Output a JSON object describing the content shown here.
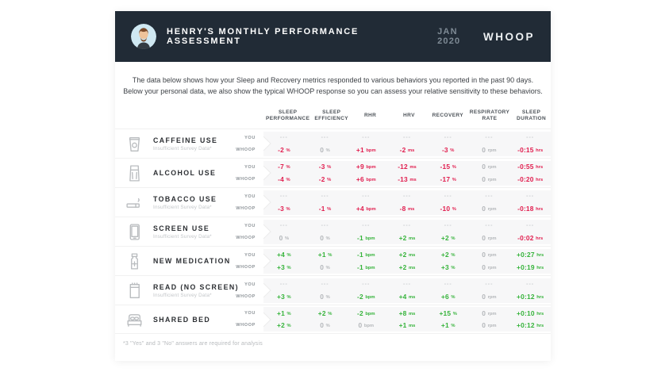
{
  "header": {
    "title": "HENRY'S MONTHLY PERFORMANCE ASSESSMENT",
    "period": "JAN 2020",
    "brand": "WHOOP",
    "avatar_icon": "user-avatar"
  },
  "intro": {
    "line1": "The data below shows how your Sleep and Recovery metrics responded to various behaviors you reported in the past 90 days.",
    "line2": "Below your personal data, we also show the typical WHOOP response so you can assess your relative sensitivity to these behaviors."
  },
  "colors": {
    "negative": "#E11D4E",
    "positive": "#35B33A",
    "neutral": "#B4B7BA",
    "header_bg": "#212B36",
    "panel_bg": "#F7F7F8"
  },
  "table": {
    "columns": [
      "SLEEP PERFORMANCE",
      "SLEEP EFFICIENCY",
      "RHR",
      "HRV",
      "RECOVERY",
      "RESPIRATORY RATE",
      "SLEEP DURATION"
    ],
    "row_source_labels": {
      "you": "YOU",
      "whoop": "WHOOP"
    },
    "rows": [
      {
        "label": "CAFFEINE USE",
        "subtitle": "Insufficient Survey Data*",
        "icon": "coffee-cup-icon",
        "you": [
          {
            "v": "---"
          },
          {
            "v": "---"
          },
          {
            "v": "---"
          },
          {
            "v": "---"
          },
          {
            "v": "---"
          },
          {
            "v": "---"
          },
          {
            "v": "---"
          }
        ],
        "whoop": [
          {
            "v": "-2",
            "u": "%",
            "c": "neg"
          },
          {
            "v": "0",
            "u": "%",
            "c": "neu"
          },
          {
            "v": "+1",
            "u": "bpm",
            "c": "neg"
          },
          {
            "v": "-2",
            "u": "ms",
            "c": "neg"
          },
          {
            "v": "-3",
            "u": "%",
            "c": "neg"
          },
          {
            "v": "0",
            "u": "rpm",
            "c": "neu"
          },
          {
            "v": "-0:15",
            "u": "hrs",
            "c": "neg"
          }
        ]
      },
      {
        "label": "ALCOHOL USE",
        "subtitle": "",
        "icon": "beer-glass-icon",
        "you": [
          {
            "v": "-7",
            "u": "%",
            "c": "neg"
          },
          {
            "v": "-3",
            "u": "%",
            "c": "neg"
          },
          {
            "v": "+9",
            "u": "bpm",
            "c": "neg"
          },
          {
            "v": "-12",
            "u": "ms",
            "c": "neg"
          },
          {
            "v": "-15",
            "u": "%",
            "c": "neg"
          },
          {
            "v": "0",
            "u": "rpm",
            "c": "neu"
          },
          {
            "v": "-0:55",
            "u": "hrs",
            "c": "neg"
          }
        ],
        "whoop": [
          {
            "v": "-4",
            "u": "%",
            "c": "neg"
          },
          {
            "v": "-2",
            "u": "%",
            "c": "neg"
          },
          {
            "v": "+6",
            "u": "bpm",
            "c": "neg"
          },
          {
            "v": "-13",
            "u": "ms",
            "c": "neg"
          },
          {
            "v": "-17",
            "u": "%",
            "c": "neg"
          },
          {
            "v": "0",
            "u": "rpm",
            "c": "neu"
          },
          {
            "v": "-0:20",
            "u": "hrs",
            "c": "neg"
          }
        ]
      },
      {
        "label": "TOBACCO USE",
        "subtitle": "Insufficient Survey Data*",
        "icon": "cigarette-icon",
        "you": [
          {
            "v": "---"
          },
          {
            "v": "---"
          },
          {
            "v": "---"
          },
          {
            "v": "---"
          },
          {
            "v": "---"
          },
          {
            "v": "---"
          },
          {
            "v": "---"
          }
        ],
        "whoop": [
          {
            "v": "-3",
            "u": "%",
            "c": "neg"
          },
          {
            "v": "-1",
            "u": "%",
            "c": "neg"
          },
          {
            "v": "+4",
            "u": "bpm",
            "c": "neg"
          },
          {
            "v": "-8",
            "u": "ms",
            "c": "neg"
          },
          {
            "v": "-10",
            "u": "%",
            "c": "neg"
          },
          {
            "v": "0",
            "u": "rpm",
            "c": "neu"
          },
          {
            "v": "-0:18",
            "u": "hrs",
            "c": "neg"
          }
        ]
      },
      {
        "label": "SCREEN USE",
        "subtitle": "Insufficient Survey Data*",
        "icon": "tablet-icon",
        "you": [
          {
            "v": "---"
          },
          {
            "v": "---"
          },
          {
            "v": "---"
          },
          {
            "v": "---"
          },
          {
            "v": "---"
          },
          {
            "v": "---"
          },
          {
            "v": "---"
          }
        ],
        "whoop": [
          {
            "v": "0",
            "u": "%",
            "c": "neu"
          },
          {
            "v": "0",
            "u": "%",
            "c": "neu"
          },
          {
            "v": "-1",
            "u": "bpm",
            "c": "pos"
          },
          {
            "v": "+2",
            "u": "ms",
            "c": "pos"
          },
          {
            "v": "+2",
            "u": "%",
            "c": "pos"
          },
          {
            "v": "0",
            "u": "rpm",
            "c": "neu"
          },
          {
            "v": "-0:02",
            "u": "hrs",
            "c": "neg"
          }
        ]
      },
      {
        "label": "NEW MEDICATION",
        "subtitle": "",
        "icon": "medicine-bottle-icon",
        "you": [
          {
            "v": "+4",
            "u": "%",
            "c": "pos"
          },
          {
            "v": "+1",
            "u": "%",
            "c": "pos"
          },
          {
            "v": "-1",
            "u": "bpm",
            "c": "pos"
          },
          {
            "v": "+2",
            "u": "ms",
            "c": "pos"
          },
          {
            "v": "+2",
            "u": "%",
            "c": "pos"
          },
          {
            "v": "0",
            "u": "rpm",
            "c": "neu"
          },
          {
            "v": "+0:27",
            "u": "hrs",
            "c": "pos"
          }
        ],
        "whoop": [
          {
            "v": "+3",
            "u": "%",
            "c": "pos"
          },
          {
            "v": "0",
            "u": "%",
            "c": "neu"
          },
          {
            "v": "-1",
            "u": "bpm",
            "c": "pos"
          },
          {
            "v": "+2",
            "u": "ms",
            "c": "pos"
          },
          {
            "v": "+3",
            "u": "%",
            "c": "pos"
          },
          {
            "v": "0",
            "u": "rpm",
            "c": "neu"
          },
          {
            "v": "+0:19",
            "u": "hrs",
            "c": "pos"
          }
        ]
      },
      {
        "label": "READ (NO SCREEN)",
        "subtitle": "Insufficient Survey Data*",
        "icon": "book-icon",
        "you": [
          {
            "v": "---"
          },
          {
            "v": "---"
          },
          {
            "v": "---"
          },
          {
            "v": "---"
          },
          {
            "v": "---"
          },
          {
            "v": "---"
          },
          {
            "v": "---"
          }
        ],
        "whoop": [
          {
            "v": "+3",
            "u": "%",
            "c": "pos"
          },
          {
            "v": "0",
            "u": "%",
            "c": "neu"
          },
          {
            "v": "-2",
            "u": "bpm",
            "c": "pos"
          },
          {
            "v": "+4",
            "u": "ms",
            "c": "pos"
          },
          {
            "v": "+6",
            "u": "%",
            "c": "pos"
          },
          {
            "v": "0",
            "u": "rpm",
            "c": "neu"
          },
          {
            "v": "+0:12",
            "u": "hrs",
            "c": "pos"
          }
        ]
      },
      {
        "label": "SHARED BED",
        "subtitle": "",
        "icon": "bed-icon",
        "you": [
          {
            "v": "+1",
            "u": "%",
            "c": "pos"
          },
          {
            "v": "+2",
            "u": "%",
            "c": "pos"
          },
          {
            "v": "-2",
            "u": "bpm",
            "c": "pos"
          },
          {
            "v": "+8",
            "u": "ms",
            "c": "pos"
          },
          {
            "v": "+15",
            "u": "%",
            "c": "pos"
          },
          {
            "v": "0",
            "u": "rpm",
            "c": "neu"
          },
          {
            "v": "+0:10",
            "u": "hrs",
            "c": "pos"
          }
        ],
        "whoop": [
          {
            "v": "+2",
            "u": "%",
            "c": "pos"
          },
          {
            "v": "0",
            "u": "%",
            "c": "neu"
          },
          {
            "v": "0",
            "u": "bpm",
            "c": "neu"
          },
          {
            "v": "+1",
            "u": "ms",
            "c": "pos"
          },
          {
            "v": "+1",
            "u": "%",
            "c": "pos"
          },
          {
            "v": "0",
            "u": "rpm",
            "c": "neu"
          },
          {
            "v": "+0:12",
            "u": "hrs",
            "c": "pos"
          }
        ]
      }
    ]
  },
  "footer": {
    "note": "*3 \"Yes\" and 3 \"No\" answers are required for analysis"
  }
}
